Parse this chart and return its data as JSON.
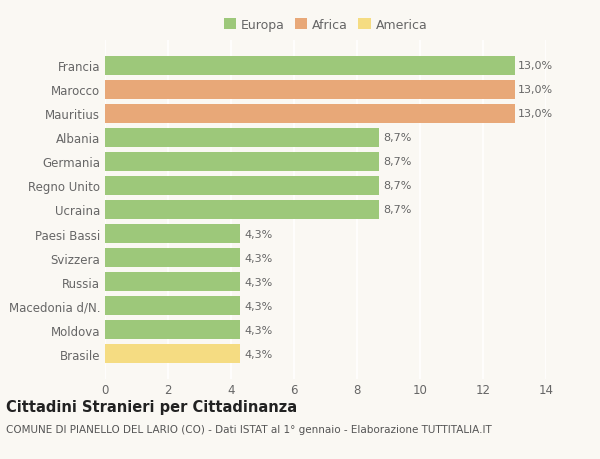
{
  "categories": [
    "Brasile",
    "Moldova",
    "Macedonia d/N.",
    "Russia",
    "Svizzera",
    "Paesi Bassi",
    "Ucraina",
    "Regno Unito",
    "Germania",
    "Albania",
    "Mauritius",
    "Marocco",
    "Francia"
  ],
  "values": [
    4.3,
    4.3,
    4.3,
    4.3,
    4.3,
    4.3,
    8.7,
    8.7,
    8.7,
    8.7,
    13.0,
    13.0,
    13.0
  ],
  "colors": [
    "#f5dc82",
    "#9dc87a",
    "#9dc87a",
    "#9dc87a",
    "#9dc87a",
    "#9dc87a",
    "#9dc87a",
    "#9dc87a",
    "#9dc87a",
    "#9dc87a",
    "#e8a878",
    "#e8a878",
    "#9dc87a"
  ],
  "labels": [
    "4,3%",
    "4,3%",
    "4,3%",
    "4,3%",
    "4,3%",
    "4,3%",
    "8,7%",
    "8,7%",
    "8,7%",
    "8,7%",
    "13,0%",
    "13,0%",
    "13,0%"
  ],
  "legend_labels": [
    "Europa",
    "Africa",
    "America"
  ],
  "legend_colors": [
    "#9dc87a",
    "#e8a878",
    "#f5dc82"
  ],
  "title": "Cittadini Stranieri per Cittadinanza",
  "subtitle": "COMUNE DI PIANELLO DEL LARIO (CO) - Dati ISTAT al 1° gennaio - Elaborazione TUTTITALIA.IT",
  "xlim": [
    0,
    14
  ],
  "xticks": [
    0,
    2,
    4,
    6,
    8,
    10,
    12,
    14
  ],
  "background_color": "#faf8f3",
  "grid_color": "#ffffff",
  "bar_height": 0.78,
  "label_fontsize": 8,
  "title_fontsize": 10.5,
  "subtitle_fontsize": 7.5,
  "tick_fontsize": 8.5,
  "ytick_color": "#666666",
  "xtick_color": "#666666",
  "label_color": "#666666"
}
